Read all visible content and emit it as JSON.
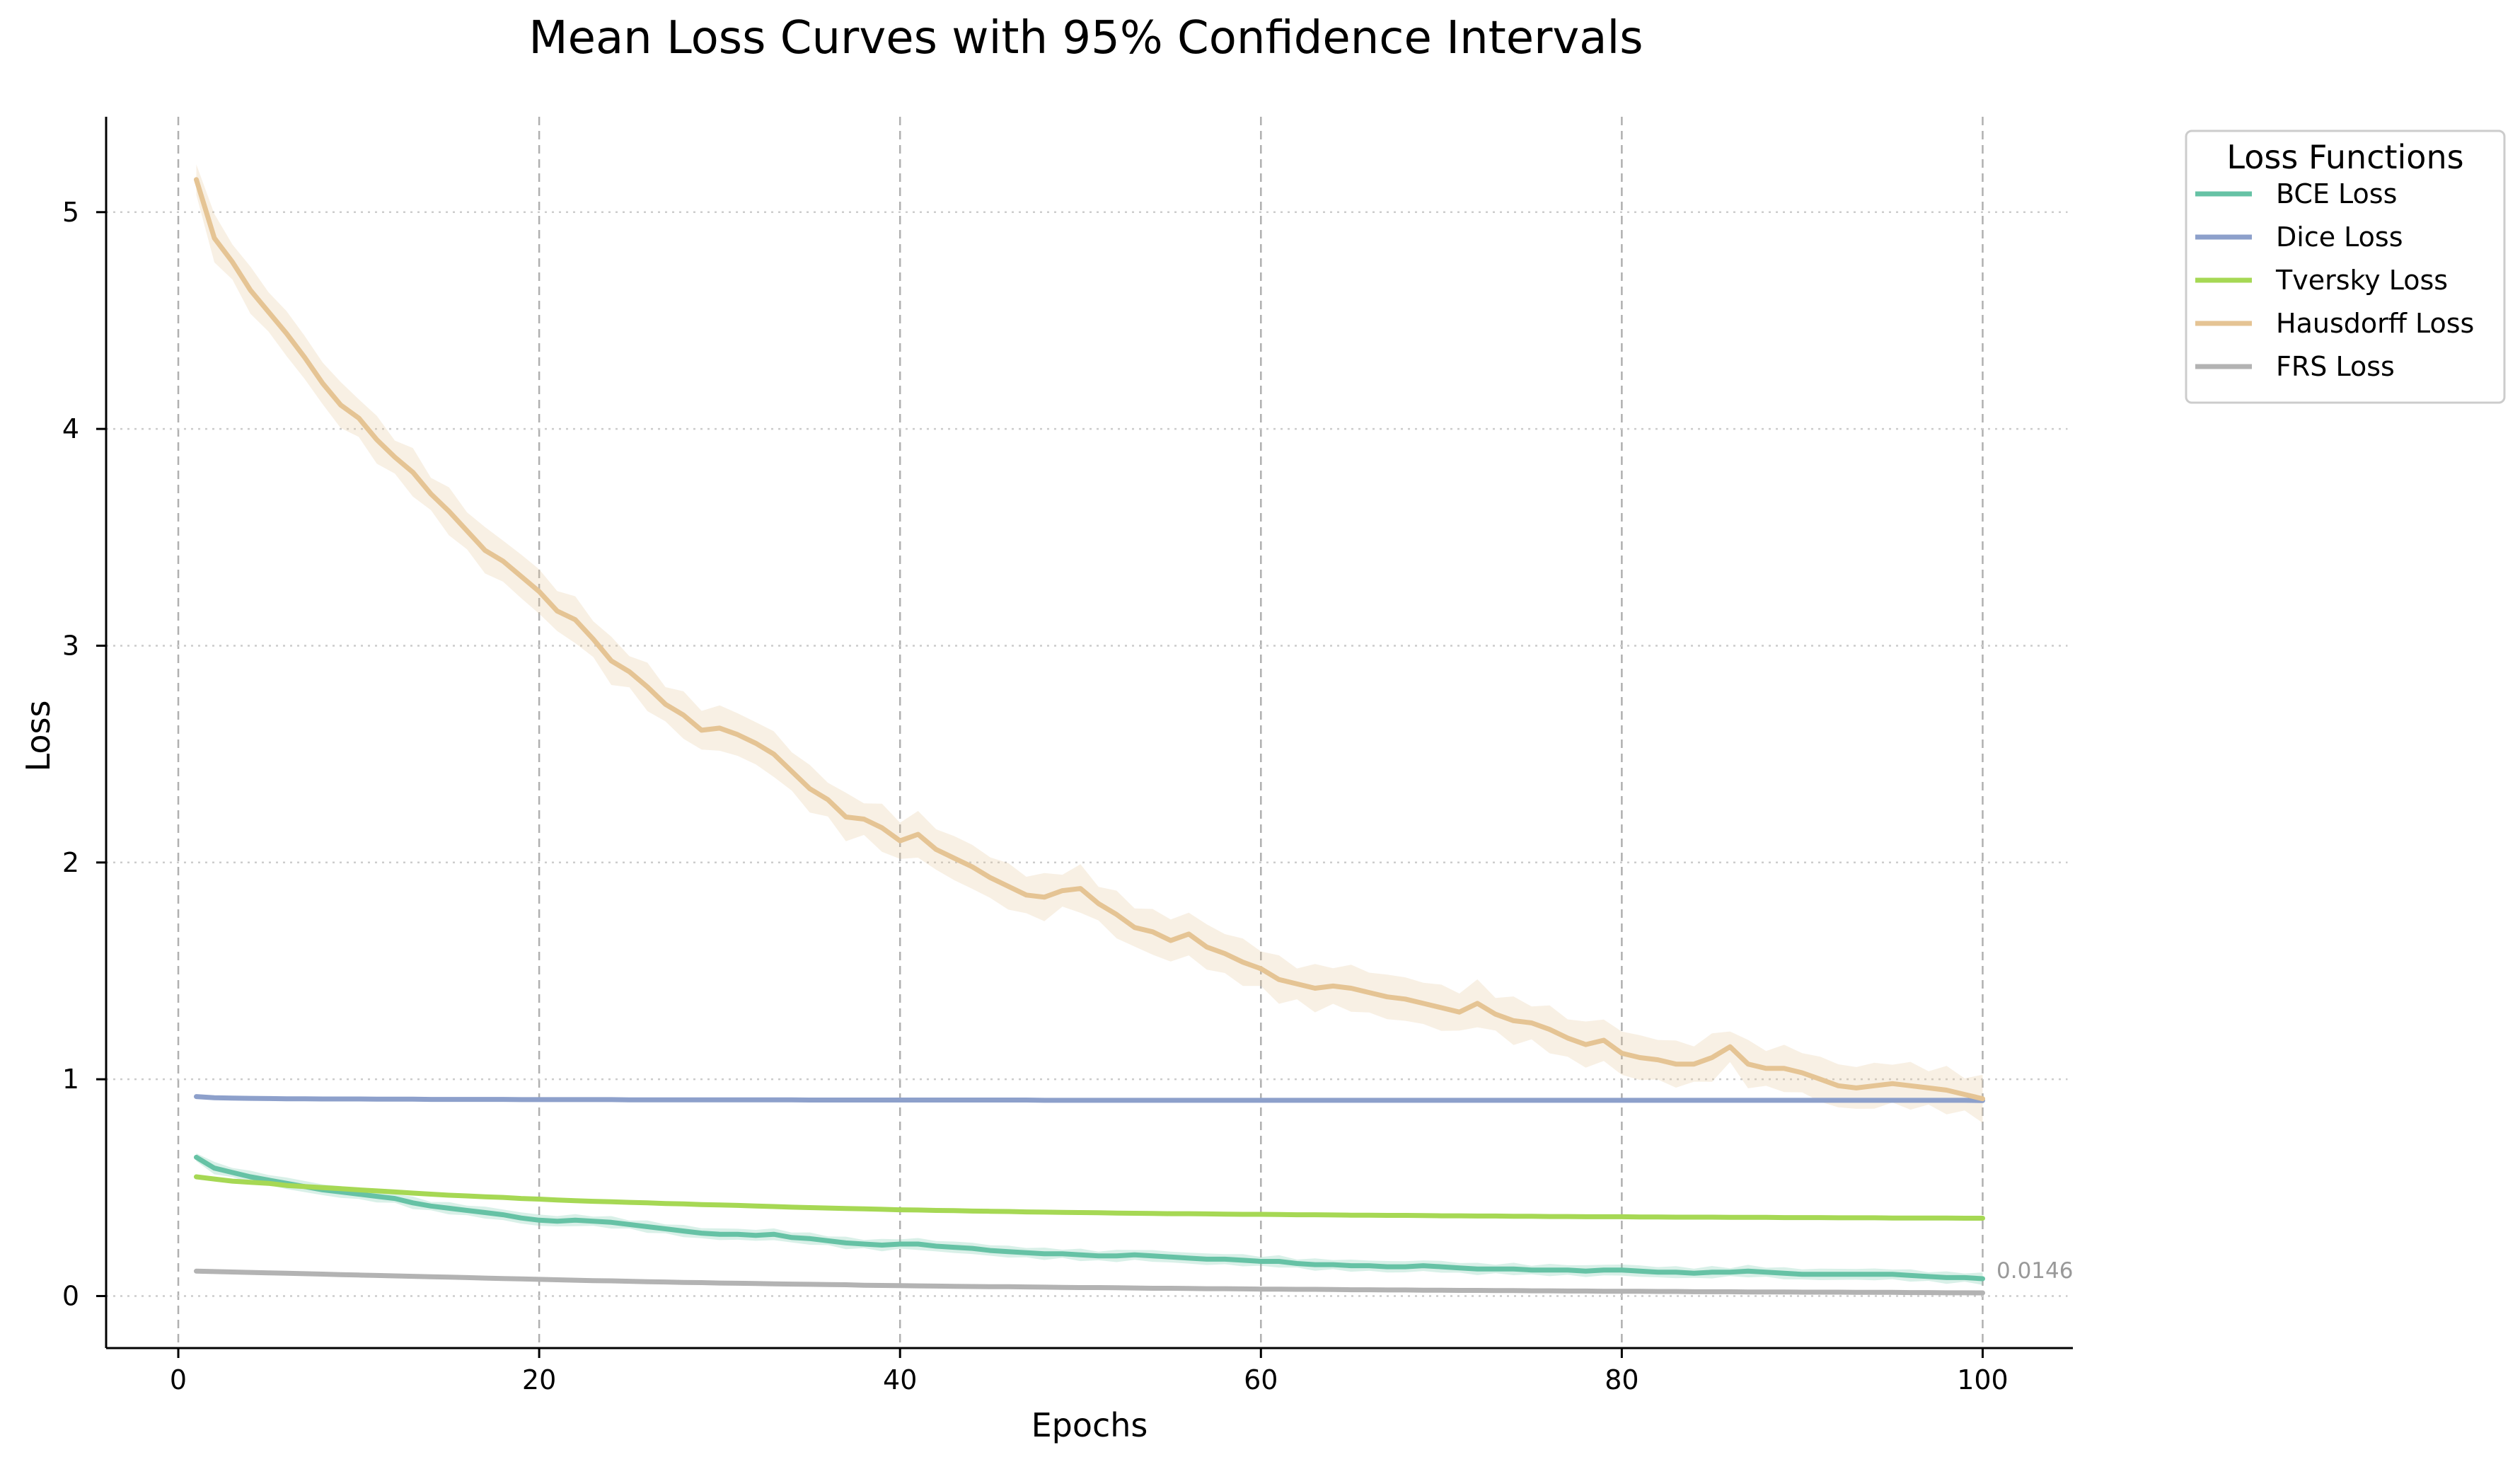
{
  "chart_data": {
    "type": "line",
    "title": "Mean Loss Curves with 95% Confidence Intervals",
    "xlabel": "Epochs",
    "ylabel": "Loss",
    "xlim": [
      -4,
      105
    ],
    "ylim": [
      -0.24,
      5.44
    ],
    "xticks": [
      0,
      20,
      40,
      60,
      80,
      100
    ],
    "yticks": [
      0,
      1,
      2,
      3,
      4,
      5
    ],
    "grid": {
      "x": "dashed",
      "y": "dotted"
    },
    "legend": {
      "title": "Loss Functions",
      "placement": "outside right, top"
    },
    "annotation": {
      "text": "0.0146",
      "x": 100,
      "y": 0.0146
    },
    "x": [
      1,
      2,
      3,
      4,
      5,
      6,
      7,
      8,
      9,
      10,
      11,
      12,
      13,
      14,
      15,
      16,
      17,
      18,
      19,
      20,
      21,
      22,
      23,
      24,
      25,
      26,
      27,
      28,
      29,
      30,
      31,
      32,
      33,
      34,
      35,
      36,
      37,
      38,
      39,
      40,
      41,
      42,
      43,
      44,
      45,
      46,
      47,
      48,
      49,
      50,
      51,
      52,
      53,
      54,
      55,
      56,
      57,
      58,
      59,
      60,
      61,
      62,
      63,
      64,
      65,
      66,
      67,
      68,
      69,
      70,
      71,
      72,
      73,
      74,
      75,
      76,
      77,
      78,
      79,
      80,
      81,
      82,
      83,
      84,
      85,
      86,
      87,
      88,
      89,
      90,
      91,
      92,
      93,
      94,
      95,
      96,
      97,
      98,
      99,
      100
    ],
    "series": [
      {
        "name": "BCE Loss",
        "color": "#66c2a5",
        "values": [
          0.64,
          0.59,
          0.57,
          0.55,
          0.535,
          0.52,
          0.505,
          0.49,
          0.48,
          0.47,
          0.46,
          0.45,
          0.43,
          0.415,
          0.405,
          0.395,
          0.385,
          0.375,
          0.36,
          0.35,
          0.345,
          0.35,
          0.345,
          0.34,
          0.33,
          0.32,
          0.31,
          0.3,
          0.29,
          0.285,
          0.285,
          0.28,
          0.285,
          0.27,
          0.265,
          0.255,
          0.245,
          0.24,
          0.235,
          0.24,
          0.24,
          0.23,
          0.225,
          0.22,
          0.21,
          0.205,
          0.2,
          0.195,
          0.195,
          0.19,
          0.185,
          0.185,
          0.19,
          0.185,
          0.18,
          0.175,
          0.17,
          0.17,
          0.165,
          0.16,
          0.16,
          0.15,
          0.145,
          0.145,
          0.14,
          0.14,
          0.135,
          0.135,
          0.14,
          0.135,
          0.13,
          0.125,
          0.125,
          0.125,
          0.12,
          0.12,
          0.12,
          0.115,
          0.12,
          0.12,
          0.115,
          0.11,
          0.11,
          0.105,
          0.11,
          0.11,
          0.115,
          0.11,
          0.105,
          0.1,
          0.1,
          0.1,
          0.1,
          0.1,
          0.1,
          0.095,
          0.09,
          0.085,
          0.085,
          0.08
        ],
        "ci": 0.018
      },
      {
        "name": "Dice Loss",
        "color": "#8da0cb",
        "values": [
          0.92,
          0.915,
          0.913,
          0.912,
          0.911,
          0.91,
          0.91,
          0.909,
          0.909,
          0.909,
          0.908,
          0.908,
          0.908,
          0.907,
          0.907,
          0.907,
          0.907,
          0.907,
          0.906,
          0.906,
          0.906,
          0.906,
          0.906,
          0.906,
          0.905,
          0.905,
          0.905,
          0.905,
          0.905,
          0.905,
          0.905,
          0.905,
          0.905,
          0.905,
          0.904,
          0.904,
          0.904,
          0.904,
          0.904,
          0.904,
          0.904,
          0.904,
          0.904,
          0.904,
          0.904,
          0.904,
          0.904,
          0.903,
          0.903,
          0.903,
          0.903,
          0.903,
          0.903,
          0.903,
          0.903,
          0.903,
          0.903,
          0.903,
          0.903,
          0.903,
          0.903,
          0.903,
          0.903,
          0.903,
          0.903,
          0.903,
          0.903,
          0.903,
          0.903,
          0.903,
          0.903,
          0.903,
          0.903,
          0.903,
          0.903,
          0.903,
          0.903,
          0.903,
          0.903,
          0.903,
          0.903,
          0.903,
          0.903,
          0.903,
          0.903,
          0.903,
          0.903,
          0.903,
          0.903,
          0.903,
          0.903,
          0.903,
          0.903,
          0.903,
          0.903,
          0.903,
          0.903,
          0.903,
          0.903,
          0.902
        ],
        "ci": 0.004
      },
      {
        "name": "Tversky Loss",
        "color": "#a6d854",
        "values": [
          0.55,
          0.54,
          0.53,
          0.525,
          0.52,
          0.51,
          0.505,
          0.5,
          0.495,
          0.49,
          0.485,
          0.48,
          0.475,
          0.47,
          0.465,
          0.462,
          0.458,
          0.455,
          0.45,
          0.447,
          0.443,
          0.44,
          0.437,
          0.435,
          0.432,
          0.43,
          0.427,
          0.425,
          0.422,
          0.42,
          0.418,
          0.415,
          0.413,
          0.41,
          0.408,
          0.406,
          0.404,
          0.402,
          0.4,
          0.398,
          0.397,
          0.395,
          0.394,
          0.392,
          0.391,
          0.39,
          0.388,
          0.387,
          0.386,
          0.385,
          0.384,
          0.383,
          0.382,
          0.381,
          0.38,
          0.38,
          0.379,
          0.378,
          0.377,
          0.377,
          0.376,
          0.375,
          0.375,
          0.374,
          0.373,
          0.373,
          0.372,
          0.372,
          0.371,
          0.37,
          0.37,
          0.369,
          0.369,
          0.368,
          0.368,
          0.367,
          0.367,
          0.366,
          0.366,
          0.366,
          0.365,
          0.365,
          0.364,
          0.364,
          0.364,
          0.363,
          0.363,
          0.363,
          0.362,
          0.362,
          0.362,
          0.361,
          0.361,
          0.361,
          0.36,
          0.36,
          0.36,
          0.36,
          0.359,
          0.359
        ],
        "ci": 0.006
      },
      {
        "name": "Hausdorff Loss",
        "color": "#e5c494",
        "values": [
          5.15,
          4.88,
          4.77,
          4.64,
          4.54,
          4.44,
          4.33,
          4.21,
          4.11,
          4.05,
          3.95,
          3.87,
          3.8,
          3.7,
          3.62,
          3.53,
          3.44,
          3.39,
          3.32,
          3.25,
          3.16,
          3.12,
          3.03,
          2.93,
          2.88,
          2.81,
          2.73,
          2.68,
          2.61,
          2.62,
          2.59,
          2.55,
          2.5,
          2.42,
          2.34,
          2.29,
          2.21,
          2.2,
          2.16,
          2.1,
          2.13,
          2.06,
          2.02,
          1.98,
          1.93,
          1.89,
          1.85,
          1.84,
          1.87,
          1.88,
          1.81,
          1.76,
          1.7,
          1.68,
          1.64,
          1.67,
          1.61,
          1.58,
          1.54,
          1.51,
          1.46,
          1.44,
          1.42,
          1.43,
          1.42,
          1.4,
          1.38,
          1.37,
          1.35,
          1.33,
          1.31,
          1.35,
          1.3,
          1.27,
          1.26,
          1.23,
          1.19,
          1.16,
          1.18,
          1.12,
          1.1,
          1.09,
          1.07,
          1.07,
          1.1,
          1.15,
          1.07,
          1.05,
          1.05,
          1.03,
          1.0,
          0.97,
          0.96,
          0.97,
          0.98,
          0.97,
          0.96,
          0.95,
          0.93,
          0.91
        ],
        "ci": 0.07
      },
      {
        "name": "FRS Loss",
        "color": "#b3b3b3",
        "values": [
          0.115,
          0.113,
          0.111,
          0.109,
          0.107,
          0.105,
          0.103,
          0.101,
          0.099,
          0.097,
          0.095,
          0.093,
          0.091,
          0.089,
          0.087,
          0.085,
          0.083,
          0.081,
          0.079,
          0.077,
          0.075,
          0.073,
          0.071,
          0.07,
          0.068,
          0.066,
          0.065,
          0.063,
          0.062,
          0.06,
          0.059,
          0.058,
          0.056,
          0.055,
          0.054,
          0.053,
          0.052,
          0.05,
          0.049,
          0.048,
          0.047,
          0.046,
          0.045,
          0.044,
          0.043,
          0.043,
          0.042,
          0.041,
          0.04,
          0.039,
          0.039,
          0.038,
          0.037,
          0.036,
          0.036,
          0.035,
          0.034,
          0.034,
          0.033,
          0.032,
          0.032,
          0.031,
          0.031,
          0.03,
          0.029,
          0.029,
          0.028,
          0.028,
          0.027,
          0.027,
          0.026,
          0.026,
          0.025,
          0.025,
          0.024,
          0.024,
          0.023,
          0.023,
          0.022,
          0.022,
          0.022,
          0.021,
          0.021,
          0.02,
          0.02,
          0.02,
          0.019,
          0.019,
          0.019,
          0.018,
          0.018,
          0.018,
          0.017,
          0.017,
          0.017,
          0.016,
          0.016,
          0.015,
          0.015,
          0.0146
        ],
        "ci": 0.003
      }
    ]
  }
}
